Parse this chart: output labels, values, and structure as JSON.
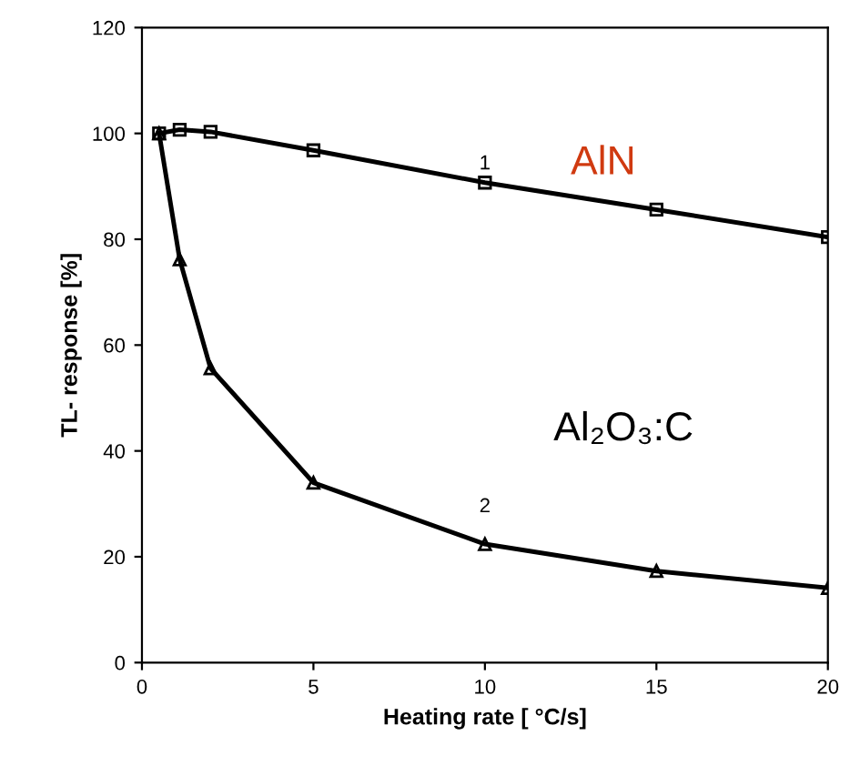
{
  "chart_data": {
    "type": "line",
    "xlabel": "Heating rate [ °C/s]",
    "ylabel": "TL- response [%]",
    "xlim": [
      0,
      20
    ],
    "xticks": [
      0,
      5,
      10,
      15,
      20
    ],
    "ylim": [
      0,
      120
    ],
    "yticks": [
      0,
      20,
      40,
      60,
      80,
      100,
      120
    ],
    "grid": false,
    "legend": false,
    "line_style": "solid",
    "series": [
      {
        "name": "AlN",
        "color": "#000000",
        "marker": "square",
        "x": [
          0.5,
          1.1,
          2,
          5,
          10,
          15,
          20
        ],
        "values": [
          100,
          100.7,
          100.3,
          96.8,
          90.7,
          85.6,
          80.4
        ]
      },
      {
        "name": "Al₂O₃:C",
        "color": "#000000",
        "marker": "triangle",
        "x": [
          0.5,
          1.1,
          2,
          5,
          10,
          15,
          20
        ],
        "values": [
          100,
          76.2,
          55.6,
          34,
          22.4,
          17.3,
          14.1
        ]
      }
    ],
    "annotations": [
      "1",
      "2"
    ]
  }
}
